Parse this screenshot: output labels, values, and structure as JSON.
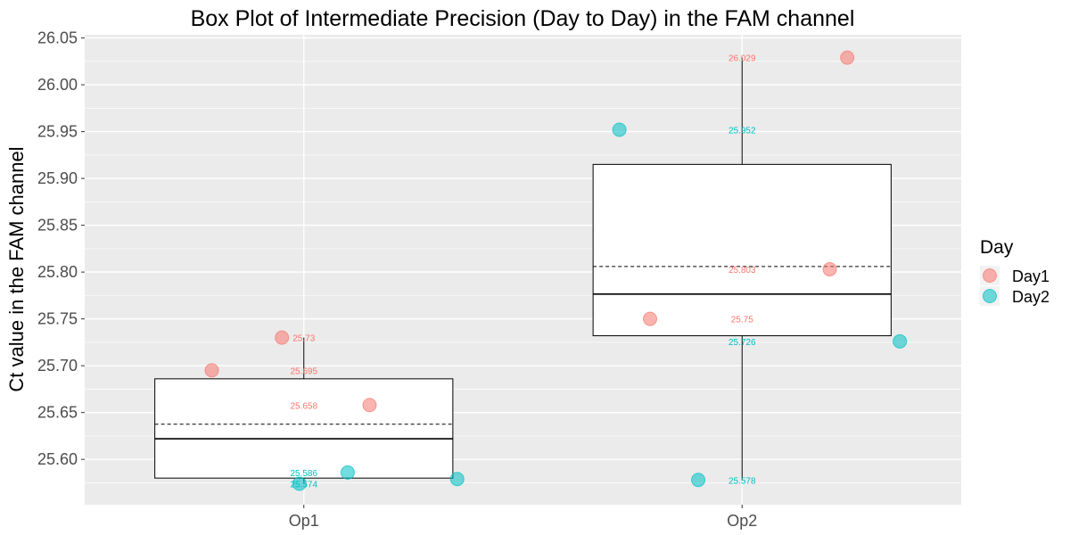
{
  "chart_data": {
    "type": "box",
    "title": "Box Plot of Intermediate Precision (Day to Day) in the FAM channel",
    "xlabel": "",
    "ylabel": "Ct value in the FAM channel",
    "categories": [
      "Op1",
      "Op2"
    ],
    "ylim": [
      25.5516,
      26.0534
    ],
    "yticks": [
      "25.60",
      "25.65",
      "25.70",
      "25.75",
      "25.80",
      "25.85",
      "25.90",
      "25.95",
      "26.00",
      "26.05"
    ],
    "grid": true,
    "legend": {
      "title": "Day",
      "position": "right",
      "entries": [
        {
          "name": "Day1",
          "color": "#F8766D"
        },
        {
          "name": "Day2",
          "color": "#00BFC4"
        }
      ]
    },
    "boxes": [
      {
        "category": "Op1",
        "lower_whisker": 25.574,
        "q1": 25.58,
        "median": 25.622,
        "q3": 25.686,
        "upper_whisker": 25.73,
        "mean": 25.6375
      },
      {
        "category": "Op2",
        "lower_whisker": 25.578,
        "q1": 25.732,
        "median": 25.7765,
        "q3": 25.915,
        "upper_whisker": 26.029,
        "mean": 25.806
      }
    ],
    "series": [
      {
        "name": "Day1",
        "color": "#F8766D",
        "points": [
          {
            "category": "Op1",
            "value": 25.73,
            "label": "25.73",
            "jitter": -0.05
          },
          {
            "category": "Op1",
            "value": 25.695,
            "label": "25.695",
            "jitter": -0.21
          },
          {
            "category": "Op1",
            "value": 25.658,
            "label": "25.658",
            "jitter": 0.15
          },
          {
            "category": "Op2",
            "value": 26.029,
            "label": "26.029",
            "jitter": 0.24
          },
          {
            "category": "Op2",
            "value": 25.803,
            "label": "25.803",
            "jitter": 0.2
          },
          {
            "category": "Op2",
            "value": 25.75,
            "label": "25.75",
            "jitter": -0.21
          }
        ]
      },
      {
        "name": "Day2",
        "color": "#00BFC4",
        "points": [
          {
            "category": "Op1",
            "value": 25.586,
            "label": "25.586",
            "jitter": 0.1
          },
          {
            "category": "Op1",
            "value": 25.574,
            "label": "25.574",
            "jitter": -0.01
          },
          {
            "category": "Op1",
            "value": 25.579,
            "label": "",
            "jitter": 0.35
          },
          {
            "category": "Op2",
            "value": 25.952,
            "label": "25.952",
            "jitter": -0.28
          },
          {
            "category": "Op2",
            "value": 25.726,
            "label": "25.726",
            "jitter": 0.36
          },
          {
            "category": "Op2",
            "value": 25.578,
            "label": "25.578",
            "jitter": -0.1
          }
        ]
      }
    ]
  }
}
